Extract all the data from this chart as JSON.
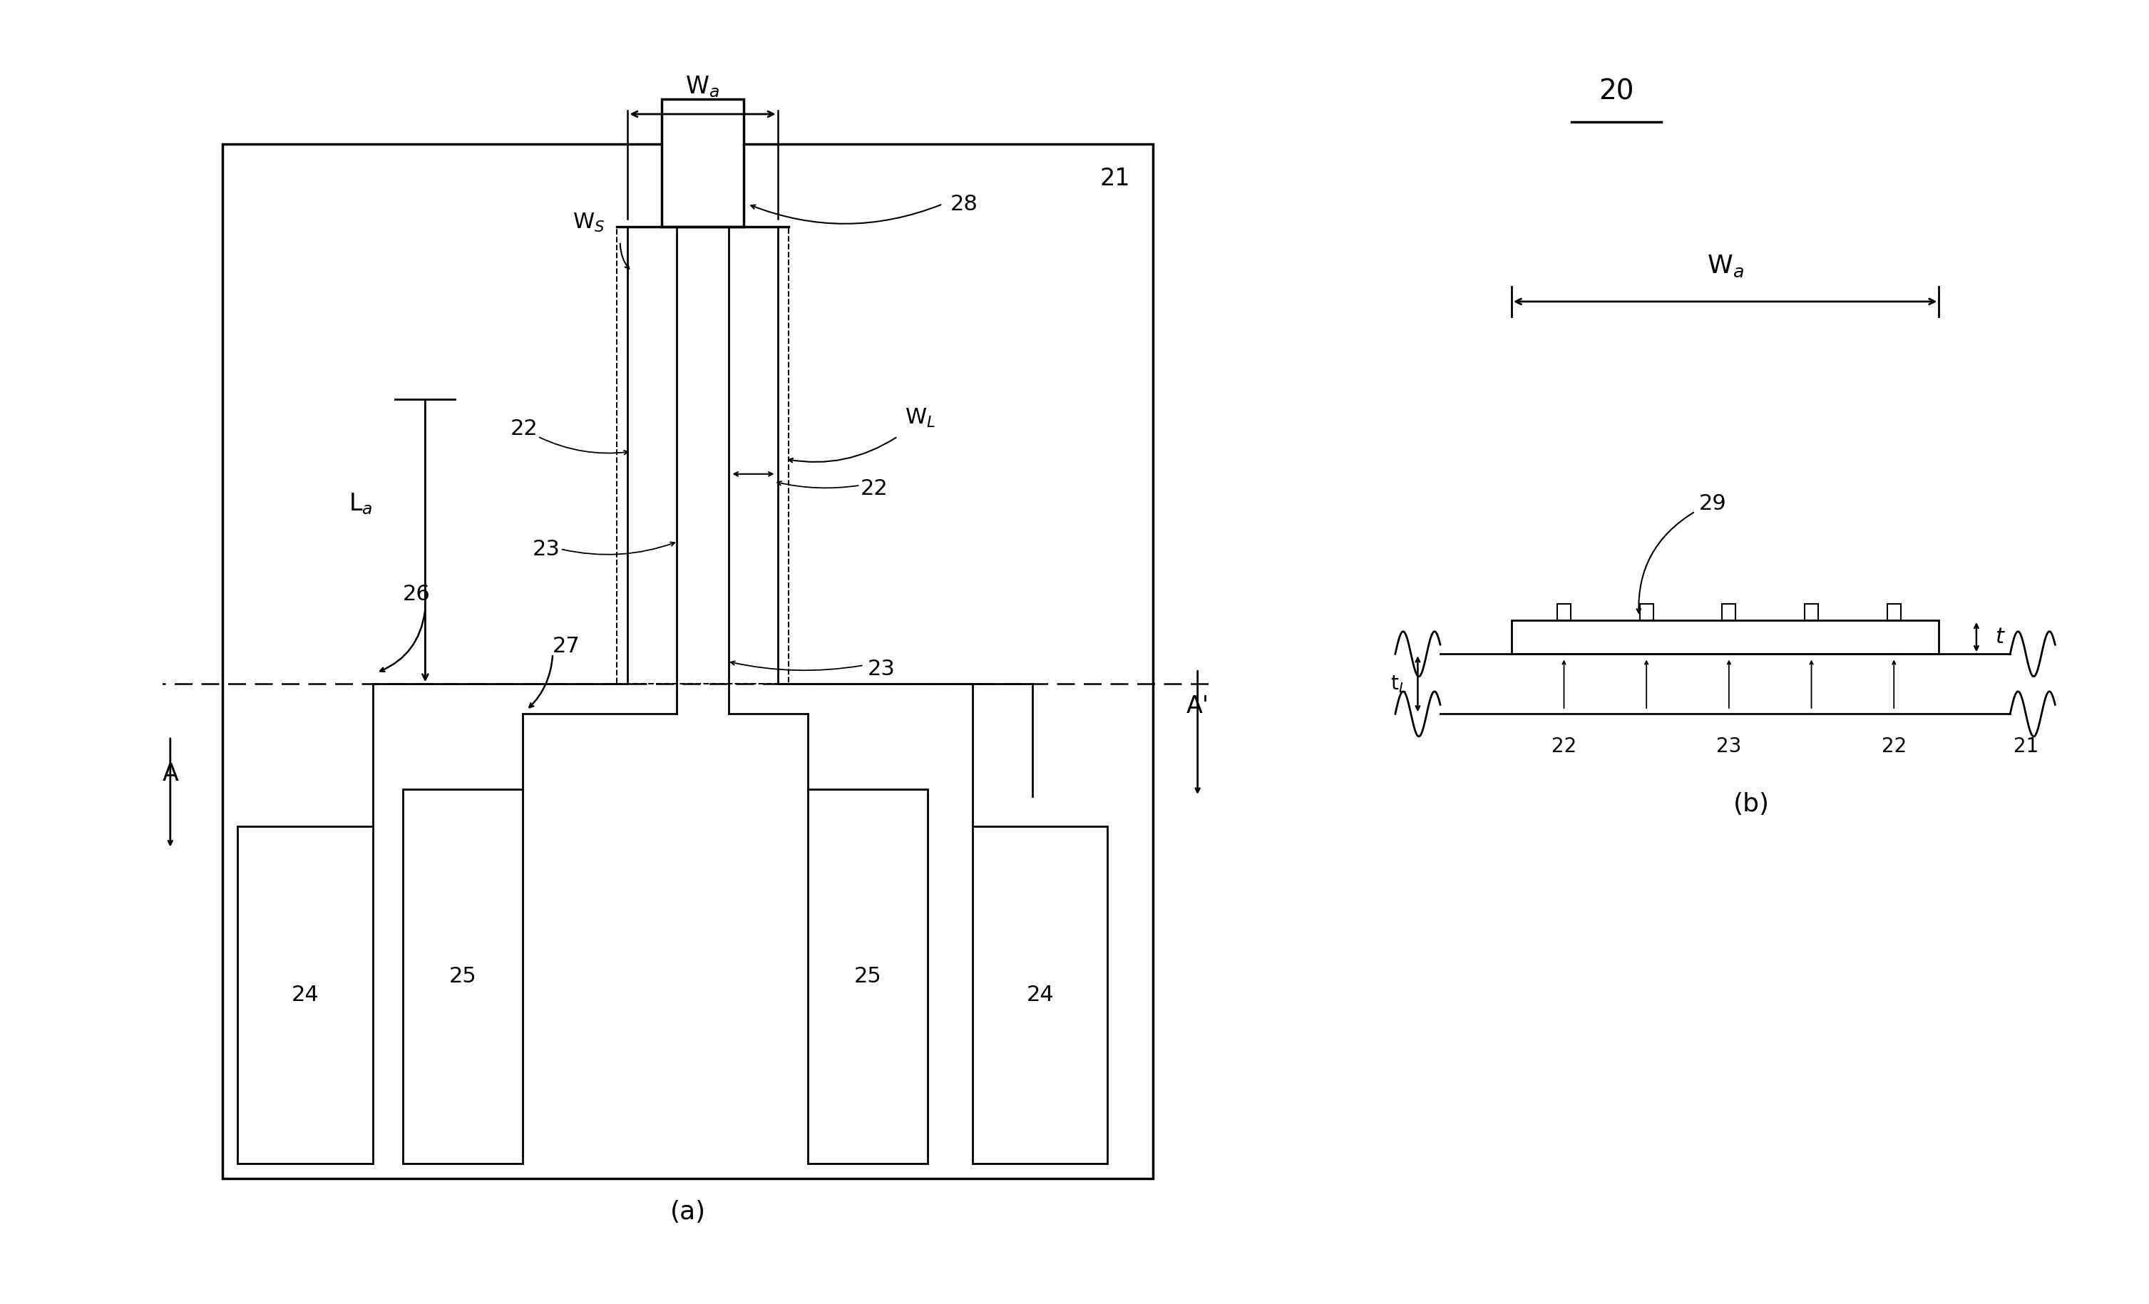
{
  "fig_width": 30.14,
  "fig_height": 18.29,
  "bg_color": "#ffffff",
  "lw": 2.0,
  "lw_thick": 2.5,
  "labels": {
    "20": "20",
    "21": "21",
    "22": "22",
    "23": "23",
    "24": "24",
    "25": "25",
    "26": "26",
    "27": "27",
    "28": "28",
    "29": "29",
    "Wa": "W$_a$",
    "La": "L$_a$",
    "Ws": "W$_S$",
    "WL": "W$_L$",
    "t": "t",
    "tL": "t$_L$",
    "a": "(a)",
    "b": "(b)",
    "A": "A",
    "Aprime": "A'"
  }
}
